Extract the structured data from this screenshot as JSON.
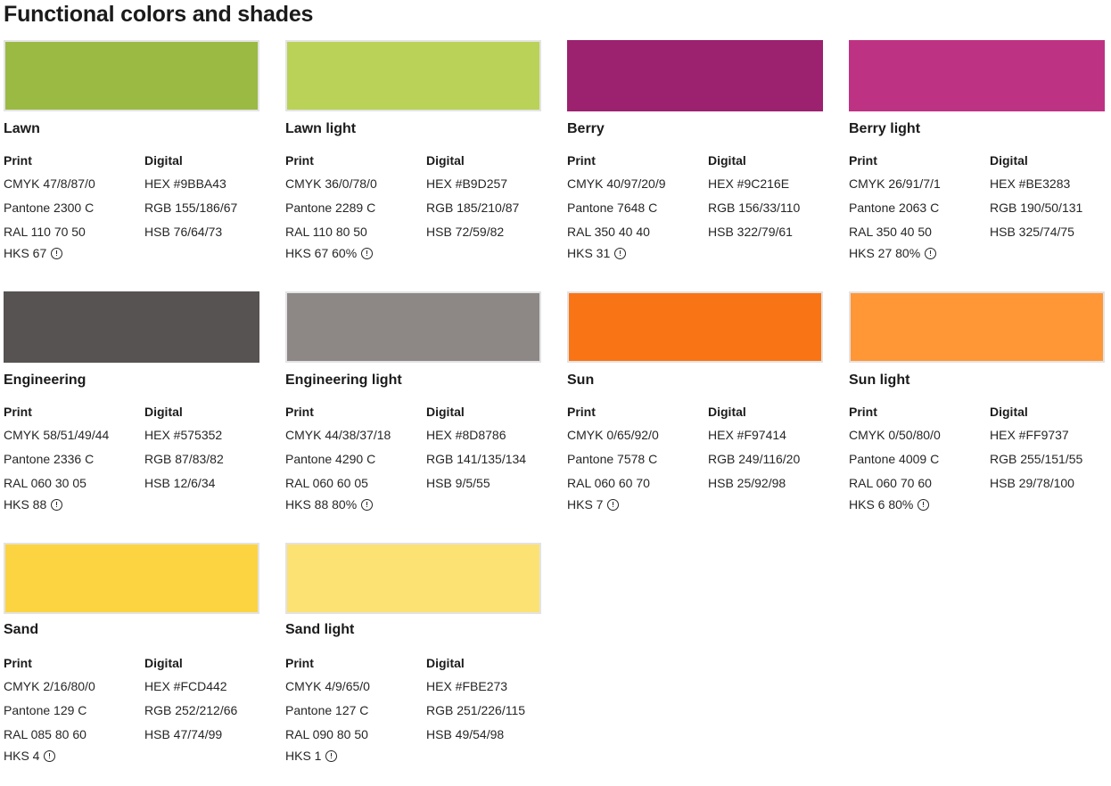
{
  "page": {
    "title": "Functional colors and shades"
  },
  "labels": {
    "print": "Print",
    "digital": "Digital"
  },
  "colors": [
    {
      "name": "Lawn",
      "swatch": "#9BBA43",
      "cmyk": "CMYK 47/8/87/0",
      "pantone": "Pantone 2300 C",
      "ral": "RAL 110 70 50",
      "hks": "HKS 67",
      "hex": "HEX #9BBA43",
      "rgb": "RGB 155/186/67",
      "hsb": "HSB 76/64/73"
    },
    {
      "name": "Lawn light",
      "swatch": "#B9D257",
      "cmyk": "CMYK 36/0/78/0",
      "pantone": "Pantone 2289 C",
      "ral": "RAL 110 80 50",
      "hks": "HKS 67 60%",
      "hex": "HEX #B9D257",
      "rgb": "RGB 185/210/87",
      "hsb": "HSB 72/59/82"
    },
    {
      "name": "Berry",
      "swatch": "#9C216E",
      "cmyk": "CMYK 40/97/20/9",
      "pantone": "Pantone 7648 C",
      "ral": "RAL 350 40 40",
      "hks": "HKS 31",
      "hex": "HEX #9C216E",
      "rgb": "RGB 156/33/110",
      "hsb": "HSB 322/79/61"
    },
    {
      "name": "Berry light",
      "swatch": "#BE3283",
      "cmyk": "CMYK 26/91/7/1",
      "pantone": "Pantone 2063 C",
      "ral": "RAL 350 40 50",
      "hks": "HKS 27 80%",
      "hex": "HEX #BE3283",
      "rgb": "RGB 190/50/131",
      "hsb": "HSB 325/74/75"
    },
    {
      "name": "Engineering",
      "swatch": "#575352",
      "cmyk": "CMYK 58/51/49/44",
      "pantone": "Pantone 2336 C",
      "ral": "RAL 060 30 05",
      "hks": "HKS 88",
      "hex": "HEX #575352",
      "rgb": "RGB 87/83/82",
      "hsb": "HSB 12/6/34"
    },
    {
      "name": "Engineering light",
      "swatch": "#8D8786",
      "cmyk": "CMYK 44/38/37/18",
      "pantone": "Pantone 4290 C",
      "ral": "RAL 060 60 05",
      "hks": "HKS 88 80%",
      "hex": "HEX #8D8786",
      "rgb": "RGB 141/135/134",
      "hsb": "HSB 9/5/55"
    },
    {
      "name": "Sun",
      "swatch": "#F97414",
      "cmyk": "CMYK 0/65/92/0",
      "pantone": "Pantone 7578 C",
      "ral": "RAL 060 60 70",
      "hks": "HKS 7",
      "hex": "HEX #F97414",
      "rgb": "RGB 249/116/20",
      "hsb": "HSB 25/92/98"
    },
    {
      "name": "Sun light",
      "swatch": "#FF9737",
      "cmyk": "CMYK 0/50/80/0",
      "pantone": "Pantone 4009 C",
      "ral": "RAL 060 70 60",
      "hks": "HKS 6 80%",
      "hex": "HEX #FF9737",
      "rgb": "RGB 255/151/55",
      "hsb": "HSB 29/78/100"
    },
    {
      "name": "Sand",
      "swatch": "#FCD442",
      "cmyk": "CMYK 2/16/80/0",
      "pantone": "Pantone 129 C",
      "ral": "RAL 085 80 60",
      "hks": "HKS 4",
      "hex": "HEX #FCD442",
      "rgb": "RGB 252/212/66",
      "hsb": "HSB 47/74/99"
    },
    {
      "name": "Sand light",
      "swatch": "#FBE273",
      "cmyk": "CMYK 4/9/65/0",
      "pantone": "Pantone 127 C",
      "ral": "RAL 090 80 50",
      "hks": "HKS 1",
      "hex": "HEX #FBE273",
      "rgb": "RGB 251/226/115",
      "hsb": "HSB 49/54/98"
    }
  ]
}
